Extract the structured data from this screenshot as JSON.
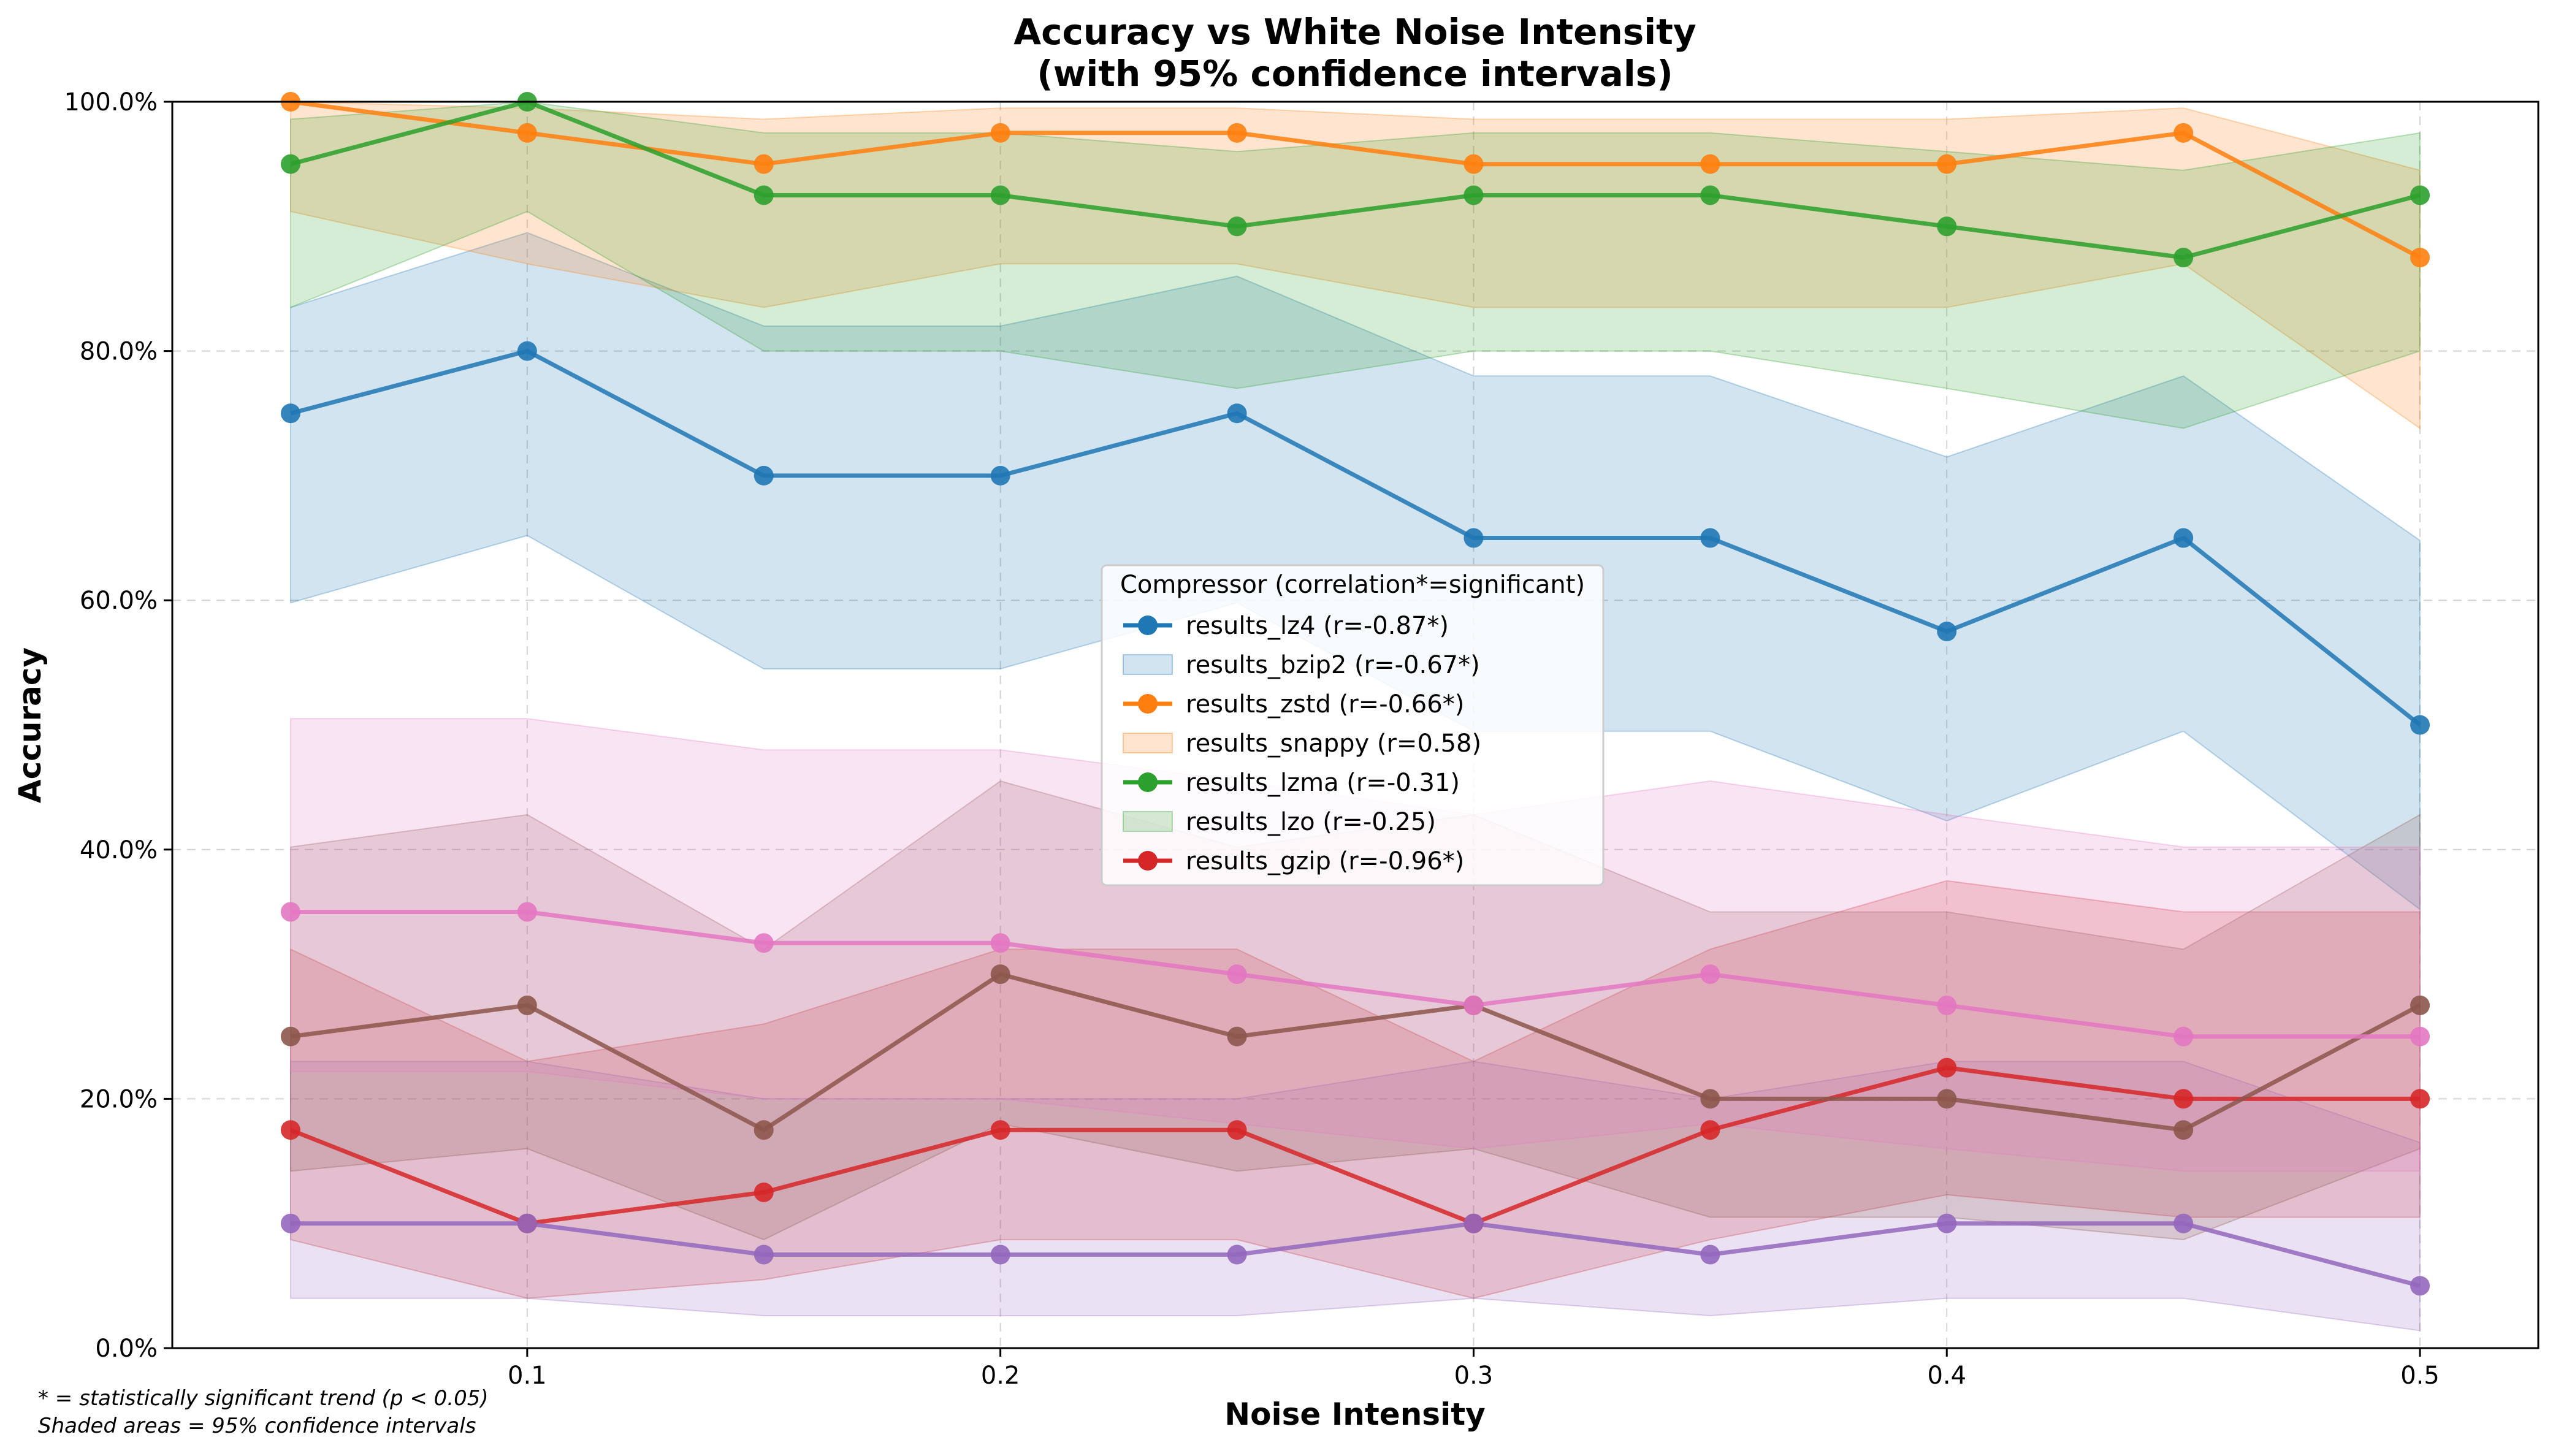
{
  "chart_data": {
    "type": "line",
    "title": "Accuracy vs White Noise Intensity",
    "subtitle": "(with 95% confidence intervals)",
    "xlabel": "Noise Intensity",
    "ylabel": "Accuracy",
    "x": [
      0.05,
      0.1,
      0.15,
      0.2,
      0.25,
      0.3,
      0.35,
      0.4,
      0.45,
      0.5
    ],
    "xlim": [
      0.025,
      0.525
    ],
    "ylim": [
      0,
      100
    ],
    "x_ticks": [
      0.1,
      0.2,
      0.3,
      0.4,
      0.5
    ],
    "x_tick_labels": [
      "0.1",
      "0.2",
      "0.3",
      "0.4",
      "0.5"
    ],
    "y_ticks": [
      0,
      20,
      40,
      60,
      80,
      100
    ],
    "y_tick_labels": [
      "0.0%",
      "20.0%",
      "40.0%",
      "60.0%",
      "80.0%",
      "100.0%"
    ],
    "grid": true,
    "legend": {
      "title": "Compressor (correlation*=significant)",
      "placement": "center",
      "entries": [
        {
          "label": "results_lz4 (r=-0.87*)",
          "style": "line",
          "color": "#1f77b4"
        },
        {
          "label": "results_bzip2 (r=-0.67*)",
          "style": "band",
          "color": "#1f77b4"
        },
        {
          "label": "results_zstd (r=-0.66*)",
          "style": "line",
          "color": "#ff7f0e"
        },
        {
          "label": "results_snappy (r=0.58)",
          "style": "band",
          "color": "#ff7f0e"
        },
        {
          "label": "results_lzma (r=-0.31)",
          "style": "line",
          "color": "#2ca02c"
        },
        {
          "label": "results_lzo (r=-0.25)",
          "style": "band",
          "color": "#2ca02c"
        },
        {
          "label": "results_gzip (r=-0.96*)",
          "style": "line",
          "color": "#d62728"
        }
      ]
    },
    "series": [
      {
        "color": "#1f77b4",
        "values": [
          75,
          80,
          70,
          70,
          75,
          65,
          65,
          57.5,
          65,
          50
        ],
        "ci_low": [
          59.8,
          65.2,
          54.5,
          54.5,
          59.8,
          49.5,
          49.5,
          42.3,
          49.5,
          35.2
        ],
        "ci_high": [
          83.5,
          89.5,
          82,
          82,
          86,
          78,
          78,
          71.5,
          78,
          64.8
        ]
      },
      {
        "color": "#ff7f0e",
        "values": [
          100,
          97.5,
          95,
          97.5,
          97.5,
          95,
          95,
          95,
          97.5,
          87.5
        ],
        "ci_low": [
          91.2,
          87,
          83.5,
          87,
          87,
          83.5,
          83.5,
          83.5,
          87,
          73.8
        ],
        "ci_high": [
          100,
          99.5,
          98.6,
          99.5,
          99.5,
          98.6,
          98.6,
          98.6,
          99.5,
          94.5
        ]
      },
      {
        "color": "#2ca02c",
        "values": [
          95,
          100,
          92.5,
          92.5,
          90,
          92.5,
          92.5,
          90,
          87.5,
          92.5
        ],
        "ci_low": [
          83.5,
          91.2,
          80,
          80,
          77,
          80,
          80,
          77,
          73.8,
          80
        ],
        "ci_high": [
          98.6,
          100,
          97.5,
          97.5,
          96,
          97.5,
          97.5,
          96,
          94.5,
          97.5
        ]
      },
      {
        "color": "#d62728",
        "values": [
          17.5,
          10,
          12.5,
          17.5,
          17.5,
          10,
          17.5,
          22.5,
          20,
          20
        ],
        "ci_low": [
          8.7,
          4,
          5.5,
          8.7,
          8.7,
          4,
          8.7,
          12.3,
          10.5,
          10.5
        ],
        "ci_high": [
          32,
          23,
          26,
          32,
          32,
          23,
          32,
          37.5,
          35,
          35
        ]
      },
      {
        "color": "#9467bd",
        "values": [
          10,
          10,
          7.5,
          7.5,
          7.5,
          10,
          7.5,
          10,
          10,
          5
        ],
        "ci_low": [
          4,
          4,
          2.6,
          2.6,
          2.6,
          4,
          2.6,
          4,
          4,
          1.4
        ],
        "ci_high": [
          23,
          23,
          20,
          20,
          20,
          23,
          20,
          23,
          23,
          16.5
        ]
      },
      {
        "color": "#8c564b",
        "values": [
          25,
          27.5,
          17.5,
          30,
          25,
          27.5,
          20,
          20,
          17.5,
          27.5
        ],
        "ci_low": [
          14.2,
          16,
          8.7,
          18,
          14.2,
          16,
          10.5,
          10.5,
          8.7,
          16
        ],
        "ci_high": [
          40.2,
          42.8,
          32,
          45.5,
          40.2,
          42.8,
          35,
          35,
          32,
          42.8
        ]
      },
      {
        "color": "#e377c2",
        "values": [
          35,
          35,
          32.5,
          32.5,
          30,
          27.5,
          30,
          27.5,
          25,
          25
        ],
        "ci_low": [
          22.2,
          22.2,
          20,
          20,
          18,
          16,
          18,
          16,
          14.2,
          14.2
        ],
        "ci_high": [
          50.5,
          50.5,
          48,
          48,
          45.5,
          42.8,
          45.5,
          42.8,
          40.2,
          40.2
        ]
      }
    ]
  },
  "footnote": {
    "line1": "* = statistically significant trend (p < 0.05)",
    "line2": "Shaded areas = 95% confidence intervals"
  }
}
